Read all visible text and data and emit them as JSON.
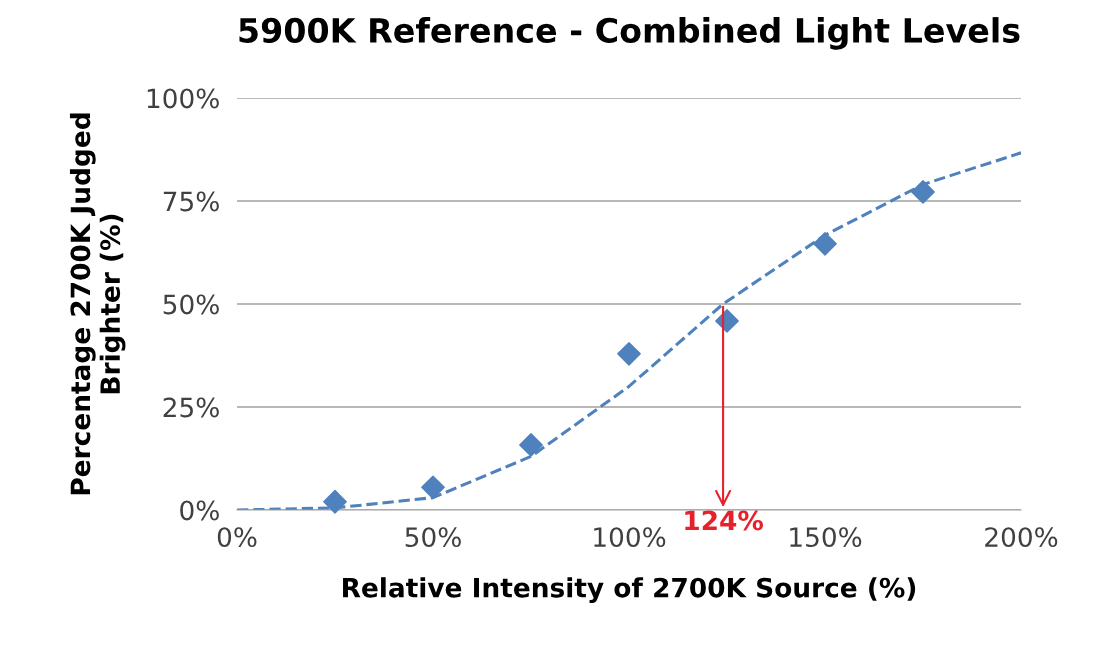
{
  "chart_data": {
    "type": "scatter",
    "title": "5900K Reference - Combined Light Levels",
    "xlabel": "Relative Intensity of 2700K Source (%)",
    "ylabel": "Percentage 2700K Judged\nBrighter (%)",
    "x": [
      25,
      50,
      75,
      100,
      125,
      150,
      175
    ],
    "series": [
      {
        "color": "#4f81bd",
        "marker": "diamond",
        "values": [
          2,
          5.5,
          15.8,
          37.9,
          45.9,
          64.6,
          77.2
        ]
      },
      {
        "type": "line",
        "color": "#4f81bd",
        "line_style": "dashed",
        "marker": "none",
        "x": [
          0,
          25,
          50,
          75,
          100,
          124,
          150,
          175,
          200
        ],
        "values": [
          0,
          0.5,
          3,
          13,
          30,
          50,
          66.7,
          79,
          86.7
        ]
      }
    ],
    "annotations": [
      {
        "text": "124%",
        "x": 124,
        "y": 50
      }
    ],
    "xlim": [
      0,
      200
    ],
    "xticks": [
      {
        "value": 0,
        "label": "0%"
      },
      {
        "value": 50,
        "label": "50%"
      },
      {
        "value": 100,
        "label": "100%"
      },
      {
        "value": 150,
        "label": "150%"
      },
      {
        "value": 200,
        "label": "200%"
      }
    ],
    "ylim": [
      0,
      100
    ],
    "yticks": [
      {
        "value": 0,
        "label": "0%"
      },
      {
        "value": 25,
        "label": "25%"
      },
      {
        "value": 50,
        "label": "50%"
      },
      {
        "value": 75,
        "label": "75%"
      },
      {
        "value": 100,
        "label": "100%"
      }
    ],
    "grid": "y",
    "legend": false
  }
}
